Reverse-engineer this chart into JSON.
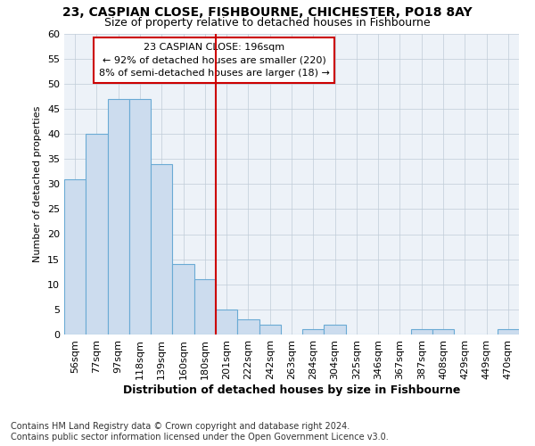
{
  "title": "23, CASPIAN CLOSE, FISHBOURNE, CHICHESTER, PO18 8AY",
  "subtitle": "Size of property relative to detached houses in Fishbourne",
  "xlabel": "Distribution of detached houses by size in Fishbourne",
  "ylabel": "Number of detached properties",
  "categories": [
    "56sqm",
    "77sqm",
    "97sqm",
    "118sqm",
    "139sqm",
    "160sqm",
    "180sqm",
    "201sqm",
    "222sqm",
    "242sqm",
    "263sqm",
    "284sqm",
    "304sqm",
    "325sqm",
    "346sqm",
    "367sqm",
    "387sqm",
    "408sqm",
    "429sqm",
    "449sqm",
    "470sqm"
  ],
  "values": [
    31,
    40,
    47,
    47,
    34,
    14,
    11,
    5,
    3,
    2,
    0,
    1,
    2,
    0,
    0,
    0,
    1,
    1,
    0,
    0,
    1
  ],
  "bar_color": "#ccdcee",
  "bar_edge_color": "#6aaad4",
  "vline_index": 7,
  "vline_color": "#cc0000",
  "annotation_text_line1": "23 CASPIAN CLOSE: 196sqm",
  "annotation_text_line2": "← 92% of detached houses are smaller (220)",
  "annotation_text_line3": "8% of semi-detached houses are larger (18) →",
  "annotation_color": "#cc0000",
  "ylim": [
    0,
    60
  ],
  "yticks": [
    0,
    5,
    10,
    15,
    20,
    25,
    30,
    35,
    40,
    45,
    50,
    55,
    60
  ],
  "grid_color": "#c0ccd8",
  "background_color": "#edf2f8",
  "footer_text": "Contains HM Land Registry data © Crown copyright and database right 2024.\nContains public sector information licensed under the Open Government Licence v3.0.",
  "title_fontsize": 10,
  "subtitle_fontsize": 9,
  "annotation_fontsize": 8,
  "ylabel_fontsize": 8,
  "xlabel_fontsize": 9,
  "tick_fontsize": 8,
  "footer_fontsize": 7
}
